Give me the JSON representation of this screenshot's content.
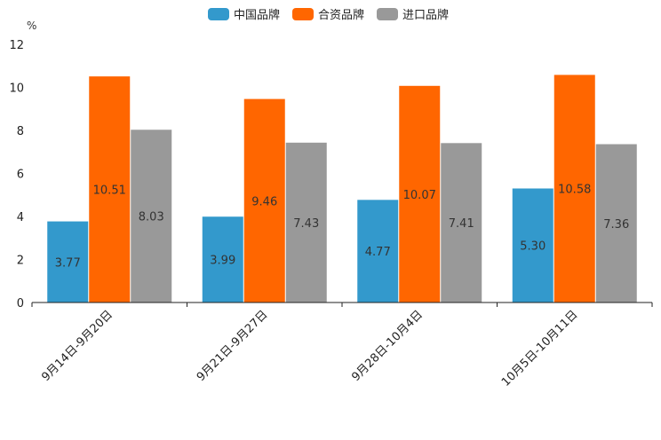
{
  "chart_data": {
    "type": "bar",
    "unit_label": "%",
    "categories": [
      "9月14日-9月20日",
      "9月21日-9月27日",
      "9月28日-10月4日",
      "10月5日-10月11日"
    ],
    "series": [
      {
        "name": "中国品牌",
        "color": "#3399cc",
        "values": [
          3.77,
          3.99,
          4.77,
          5.3
        ],
        "labels": [
          "3.77",
          "3.99",
          "4.77",
          "5.30"
        ]
      },
      {
        "name": "合资品牌",
        "color": "#ff6600",
        "values": [
          10.51,
          9.46,
          10.07,
          10.58
        ],
        "labels": [
          "10.51",
          "9.46",
          "10.07",
          "10.58"
        ]
      },
      {
        "name": "进口品牌",
        "color": "#999999",
        "values": [
          8.03,
          7.43,
          7.41,
          7.36
        ],
        "labels": [
          "8.03",
          "7.43",
          "7.41",
          "7.36"
        ]
      }
    ],
    "ylim": [
      0,
      12
    ],
    "yticks": [
      "0",
      "2",
      "4",
      "6",
      "8",
      "10",
      "12"
    ],
    "legend_position": "top-center"
  }
}
